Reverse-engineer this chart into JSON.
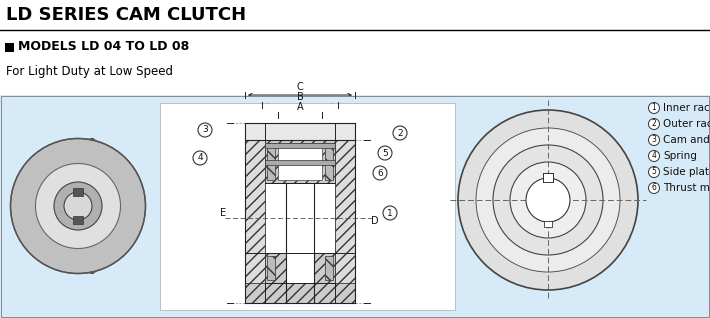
{
  "title": "LD SERIES CAM CLUTCH",
  "subtitle": "MODELS LD 04 TO LD 08",
  "description": "For Light Duty at Low Speed",
  "bg_color": "#d6eaf8",
  "header_bg": "#ffffff",
  "legend_items": [
    {
      "num": "1",
      "label": "Inner race"
    },
    {
      "num": "2",
      "label": "Outer race"
    },
    {
      "num": "3",
      "label": "Cam and roller"
    },
    {
      "num": "4",
      "label": "Spring"
    },
    {
      "num": "5",
      "label": "Side plate"
    },
    {
      "num": "6",
      "label": "Thrust metal"
    }
  ],
  "title_fontsize": 13,
  "subtitle_fontsize": 9,
  "desc_fontsize": 8.5,
  "legend_fontsize": 7.5
}
